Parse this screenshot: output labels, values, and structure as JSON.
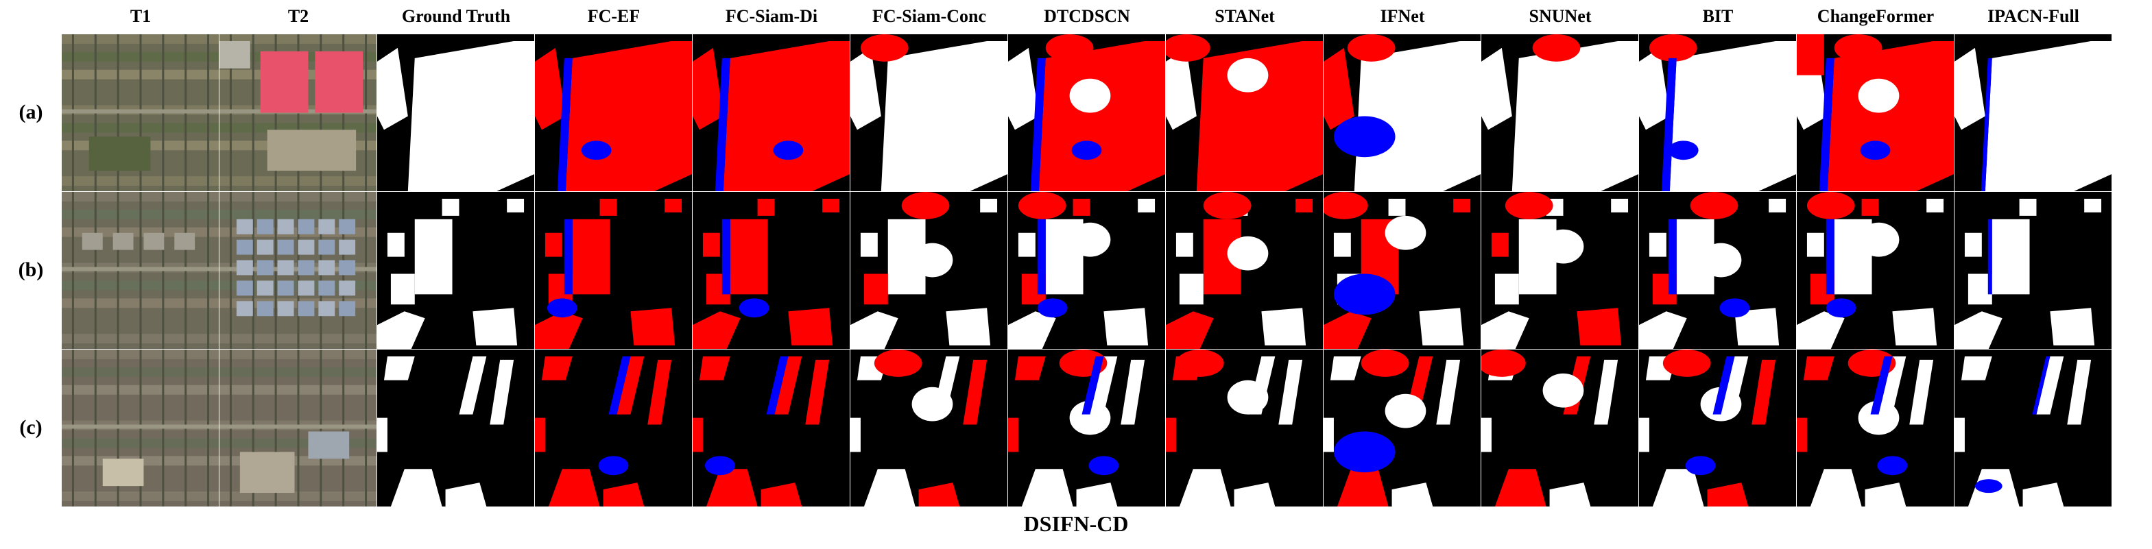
{
  "columns": [
    "T1",
    "T2",
    "Ground Truth",
    "FC-EF",
    "FC-Siam-Di",
    "FC-Siam-Conc",
    "DTCDSCN",
    "STANet",
    "IFNet",
    "SNUNet",
    "BIT",
    "ChangeFormer",
    "IPACN-Full"
  ],
  "rows": [
    "(a)",
    "(b)",
    "(c)"
  ],
  "dataset_label": "DSIFN-CD",
  "legend_colors": {
    "true_positive": "#ffffff",
    "false_positive": "#ff0000",
    "false_negative": "#0000ff",
    "true_negative": "#000000"
  }
}
